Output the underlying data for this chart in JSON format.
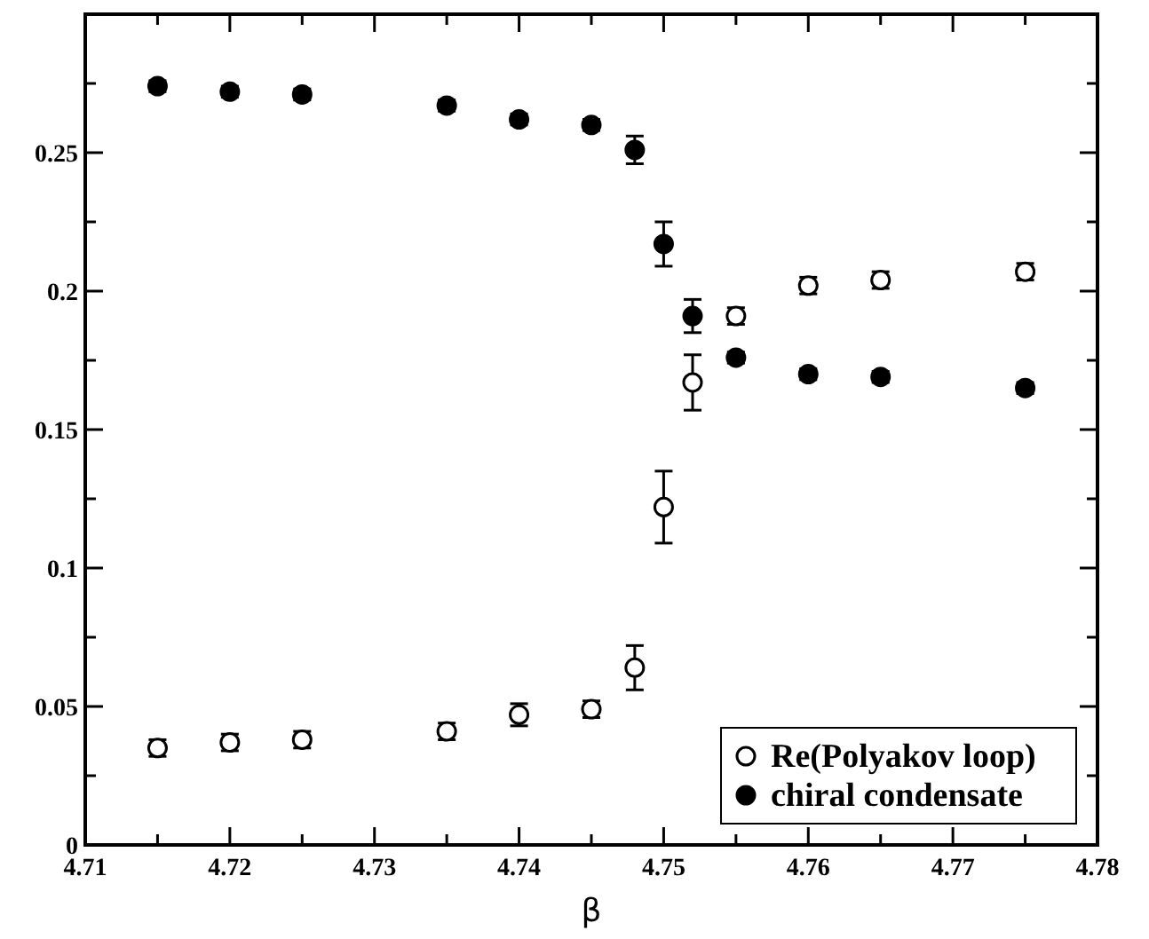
{
  "chart_data": {
    "type": "scatter",
    "xlabel": "β",
    "xlim": [
      4.71,
      4.78
    ],
    "ylim": [
      0,
      0.3
    ],
    "xticks": [
      4.71,
      {
        "value": 4.715,
        "label": null
      },
      4.72,
      {
        "value": 4.725,
        "label": null
      },
      4.73,
      {
        "value": 4.735,
        "label": null
      },
      4.74,
      {
        "value": 4.745,
        "label": null
      },
      4.75,
      {
        "value": 4.755,
        "label": null
      },
      4.76,
      {
        "value": 4.765,
        "label": null
      },
      4.77,
      {
        "value": 4.775,
        "label": null
      },
      4.78
    ],
    "yticks": [
      0,
      {
        "value": 0.025,
        "label": null
      },
      0.05,
      {
        "value": 0.075,
        "label": null
      },
      0.1,
      {
        "value": 0.125,
        "label": null
      },
      0.15,
      {
        "value": 0.175,
        "label": null
      },
      0.2,
      {
        "value": 0.225,
        "label": null
      },
      0.25,
      {
        "value": 0.275,
        "label": null
      }
    ],
    "grid": false,
    "legend": "bottom right",
    "marker": "circle",
    "x": [
      4.715,
      4.72,
      4.725,
      4.735,
      4.74,
      4.745,
      4.748,
      4.75,
      4.752,
      4.755,
      4.76,
      4.765,
      4.775
    ],
    "series": [
      {
        "name": "Re(Polyakov loop)",
        "color": "#ffffff",
        "values": [
          0.035,
          0.037,
          0.038,
          0.041,
          0.047,
          0.049,
          0.064,
          0.122,
          0.167,
          0.191,
          0.202,
          0.204,
          0.207
        ],
        "errors": [
          0.003,
          0.003,
          0.003,
          0.003,
          0.004,
          0.003,
          0.008,
          0.013,
          0.01,
          0.003,
          0.003,
          0.003,
          0.003
        ]
      },
      {
        "name": "chiral condensate",
        "color": "#000000",
        "values": [
          0.274,
          0.272,
          0.271,
          0.267,
          0.262,
          0.26,
          0.251,
          0.217,
          0.191,
          0.176,
          0.17,
          0.169,
          0.165
        ],
        "errors": [
          0.002,
          0.002,
          0.002,
          0.002,
          0.002,
          0.002,
          0.005,
          0.008,
          0.006,
          0.002,
          0.002,
          0.002,
          0.002
        ]
      }
    ]
  }
}
